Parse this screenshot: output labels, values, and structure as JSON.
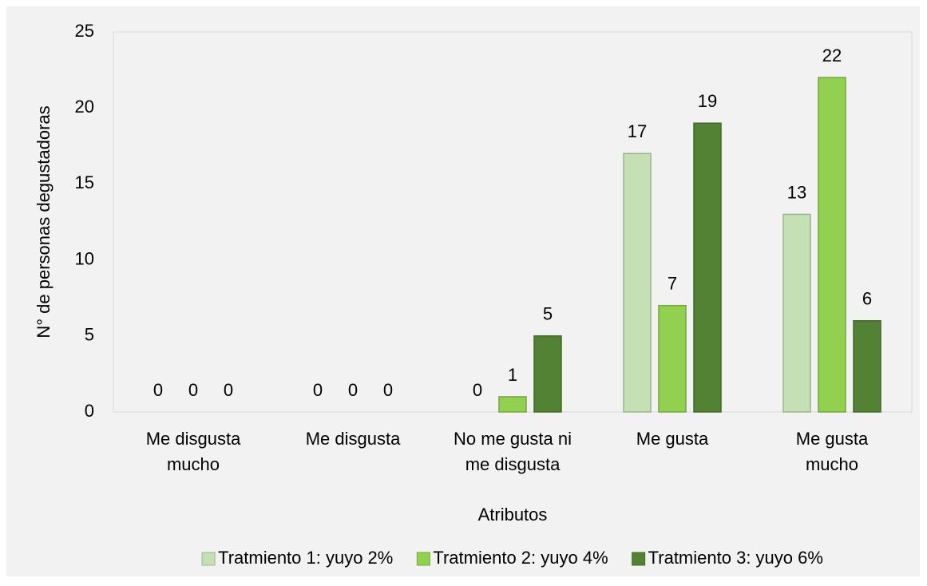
{
  "chart_data": {
    "type": "bar",
    "categories": [
      [
        "Me disgusta",
        "mucho"
      ],
      [
        "Me disgusta"
      ],
      [
        "No me gusta ni",
        "me disgusta"
      ],
      [
        "Me gusta"
      ],
      [
        "Me gusta",
        "mucho"
      ]
    ],
    "series": [
      {
        "name": "Tratmiento 1: yuyo 2%",
        "color": "#c5e0b4",
        "values": [
          0,
          0,
          0,
          17,
          13
        ]
      },
      {
        "name": "Tratmiento 2: yuyo 4%",
        "color": "#92d050",
        "values": [
          0,
          0,
          1,
          7,
          22
        ]
      },
      {
        "name": "Tratmiento 3: yuyo 6%",
        "color": "#548235",
        "values": [
          0,
          0,
          5,
          19,
          6
        ]
      }
    ],
    "xlabel": "Atributos",
    "ylabel": "N° de personas degustadoras",
    "ylim": [
      0,
      25
    ],
    "yticks": [
      0,
      5,
      10,
      15,
      20,
      25
    ],
    "grid": false,
    "legend": "bottom"
  }
}
